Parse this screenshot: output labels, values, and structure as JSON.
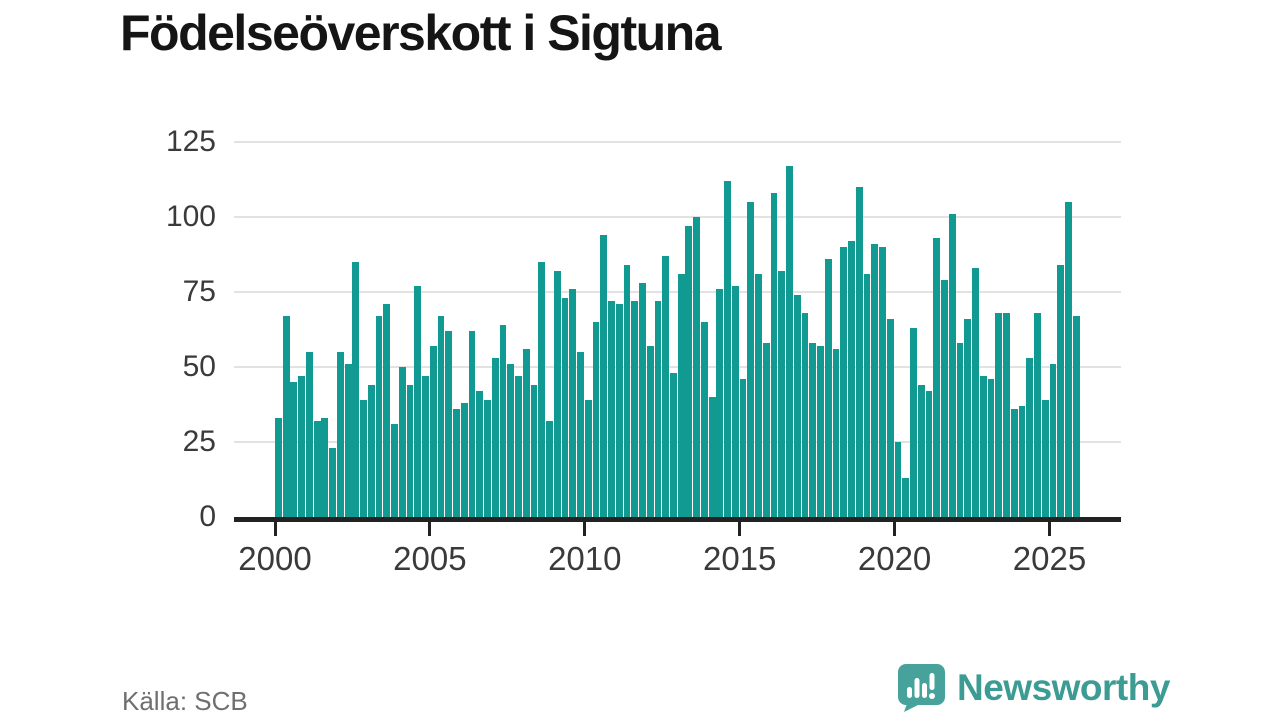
{
  "chart_data": {
    "type": "bar",
    "title": "Födelseöverskott i Sigtuna",
    "x_start": "2000-Q1",
    "frequency": "quarterly",
    "x_tick_labels": [
      "2000",
      "2005",
      "2010",
      "2015",
      "2020",
      "2025"
    ],
    "y_ticks": [
      0,
      25,
      50,
      75,
      100,
      125
    ],
    "ylim": [
      0,
      125
    ],
    "grid": "horizontal",
    "legend": "none",
    "values": [
      33,
      67,
      45,
      47,
      55,
      32,
      33,
      23,
      55,
      51,
      85,
      39,
      44,
      67,
      71,
      31,
      50,
      44,
      77,
      47,
      57,
      67,
      62,
      36,
      38,
      62,
      42,
      39,
      53,
      64,
      51,
      47,
      56,
      44,
      85,
      32,
      82,
      73,
      76,
      55,
      39,
      65,
      94,
      72,
      71,
      84,
      72,
      78,
      57,
      72,
      87,
      48,
      81,
      97,
      100,
      65,
      40,
      76,
      112,
      77,
      46,
      105,
      81,
      58,
      108,
      82,
      117,
      74,
      68,
      58,
      57,
      86,
      56,
      90,
      92,
      110,
      81,
      91,
      90,
      66,
      25,
      13,
      63,
      44,
      42,
      93,
      79,
      101,
      58,
      66,
      83,
      47,
      46,
      68,
      68,
      36,
      37,
      53,
      68,
      39,
      51,
      84,
      105,
      67
    ]
  },
  "footer": {
    "source": "Källa: SCB",
    "brand": "Newsworthy"
  },
  "colors": {
    "bar": "#119a91",
    "grid": "#e2e2e2",
    "axis": "#222222",
    "tick_label": "#3a3a3a",
    "title": "#151515",
    "source": "#6f6f6f",
    "brand_text": "#3c9c93",
    "brand_bubble": "#47a29b"
  }
}
